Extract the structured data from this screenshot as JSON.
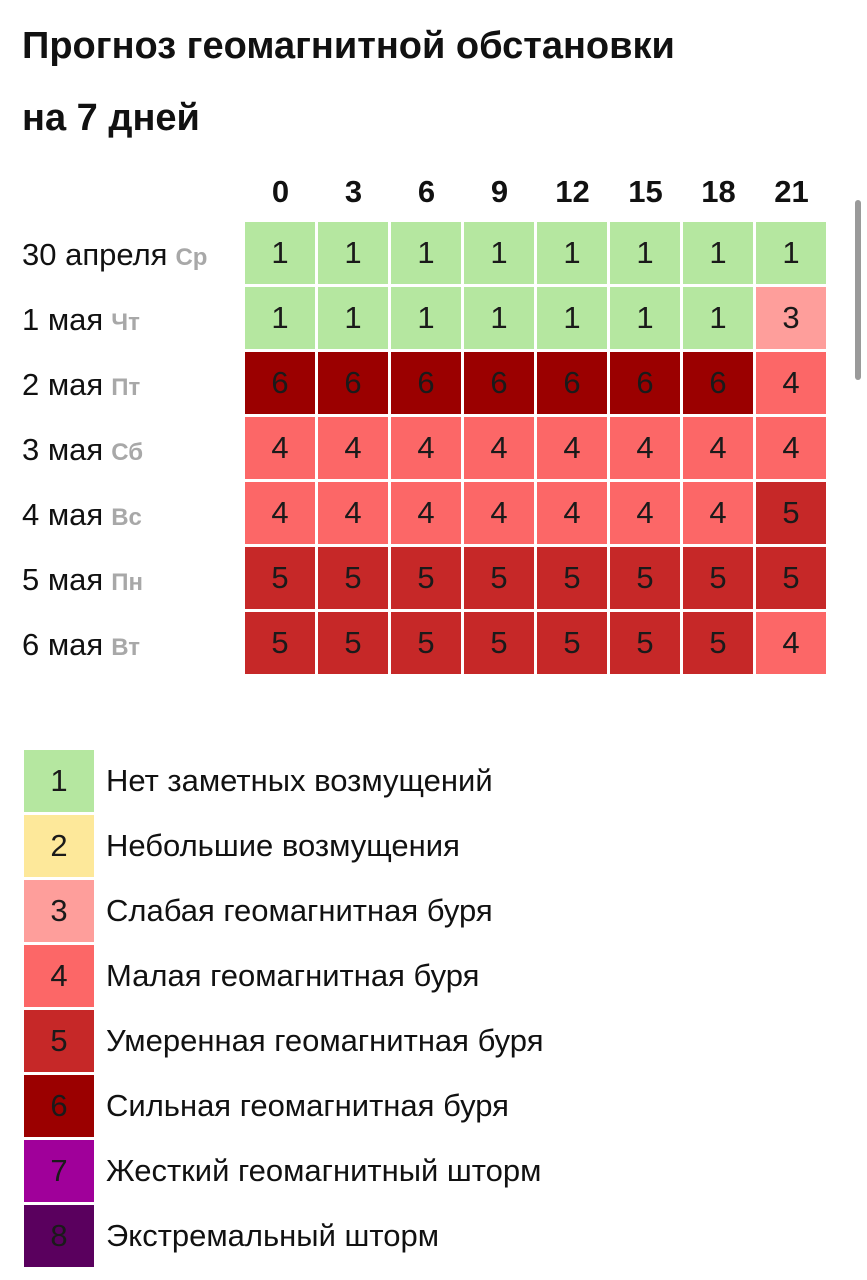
{
  "title_line1": "Прогноз геомагнитной обстановки",
  "title_line2": "на 7 дней",
  "hours": [
    "0",
    "3",
    "6",
    "9",
    "12",
    "15",
    "18",
    "21"
  ],
  "days": [
    {
      "date": "30 апреля",
      "weekday": "Ср",
      "values": [
        1,
        1,
        1,
        1,
        1,
        1,
        1,
        1
      ]
    },
    {
      "date": "1 мая",
      "weekday": "Чт",
      "values": [
        1,
        1,
        1,
        1,
        1,
        1,
        1,
        3
      ]
    },
    {
      "date": "2 мая",
      "weekday": "Пт",
      "values": [
        6,
        6,
        6,
        6,
        6,
        6,
        6,
        4
      ]
    },
    {
      "date": "3 мая",
      "weekday": "Сб",
      "values": [
        4,
        4,
        4,
        4,
        4,
        4,
        4,
        4
      ]
    },
    {
      "date": "4 мая",
      "weekday": "Вс",
      "values": [
        4,
        4,
        4,
        4,
        4,
        4,
        4,
        5
      ]
    },
    {
      "date": "5 мая",
      "weekday": "Пн",
      "values": [
        5,
        5,
        5,
        5,
        5,
        5,
        5,
        5
      ]
    },
    {
      "date": "6 мая",
      "weekday": "Вт",
      "values": [
        5,
        5,
        5,
        5,
        5,
        5,
        5,
        4
      ]
    }
  ],
  "legend": [
    {
      "level": "1",
      "label": "Нет заметных возмущений",
      "color": "#b5e7a0"
    },
    {
      "level": "2",
      "label": "Небольшие возмущения",
      "color": "#fde89a"
    },
    {
      "level": "3",
      "label": "Слабая геомагнитная буря",
      "color": "#fe9e9b"
    },
    {
      "level": "4",
      "label": "Малая геомагнитная буря",
      "color": "#fc6767"
    },
    {
      "level": "5",
      "label": "Умеренная геомагнитная буря",
      "color": "#c62828"
    },
    {
      "level": "6",
      "label": "Сильная геомагнитная буря",
      "color": "#9b0000"
    },
    {
      "level": "7",
      "label": "Жесткий геомагнитный шторм",
      "color": "#a0009a"
    },
    {
      "level": "8",
      "label": "Экстремальный шторм",
      "color": "#5a005e"
    }
  ]
}
